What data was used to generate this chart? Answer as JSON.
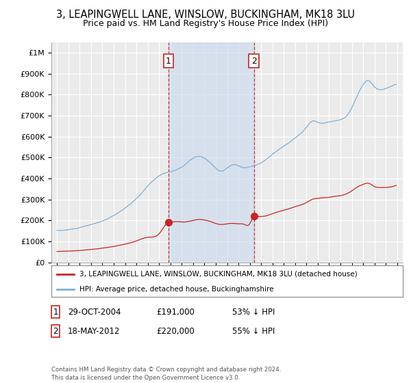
{
  "title": "3, LEAPINGWELL LANE, WINSLOW, BUCKINGHAM, MK18 3LU",
  "subtitle": "Price paid vs. HM Land Registry's House Price Index (HPI)",
  "title_fontsize": 10.5,
  "subtitle_fontsize": 9,
  "ylim": [
    0,
    1050000
  ],
  "xlim": [
    1994.5,
    2025.5
  ],
  "yticks": [
    0,
    100000,
    200000,
    300000,
    400000,
    500000,
    600000,
    700000,
    800000,
    900000,
    1000000
  ],
  "ytick_labels": [
    "£0",
    "£100K",
    "£200K",
    "£300K",
    "£400K",
    "£500K",
    "£600K",
    "£700K",
    "£800K",
    "£900K",
    "£1M"
  ],
  "xticks": [
    1995,
    1996,
    1997,
    1998,
    1999,
    2000,
    2001,
    2002,
    2003,
    2004,
    2005,
    2006,
    2007,
    2008,
    2009,
    2010,
    2011,
    2012,
    2013,
    2014,
    2015,
    2016,
    2017,
    2018,
    2019,
    2020,
    2021,
    2022,
    2023,
    2024,
    2025
  ],
  "background_color": "#ffffff",
  "plot_bg_color": "#ebebeb",
  "grid_color": "#ffffff",
  "hpi_color": "#7eb0d4",
  "price_color": "#cc2222",
  "sale1_year": 2004.83,
  "sale1_price": 191000,
  "sale2_year": 2012.38,
  "sale2_price": 220000,
  "dashed_line_color": "#cc3333",
  "span_color": "#c8d8ee",
  "legend_label_red": "3, LEAPINGWELL LANE, WINSLOW, BUCKINGHAM, MK18 3LU (detached house)",
  "legend_label_blue": "HPI: Average price, detached house, Buckinghamshire",
  "table_row1": [
    "1",
    "29-OCT-2004",
    "£191,000",
    "53% ↓ HPI"
  ],
  "table_row2": [
    "2",
    "18-MAY-2012",
    "£220,000",
    "55% ↓ HPI"
  ],
  "footer": "Contains HM Land Registry data © Crown copyright and database right 2024.\nThis data is licensed under the Open Government Licence v3.0."
}
